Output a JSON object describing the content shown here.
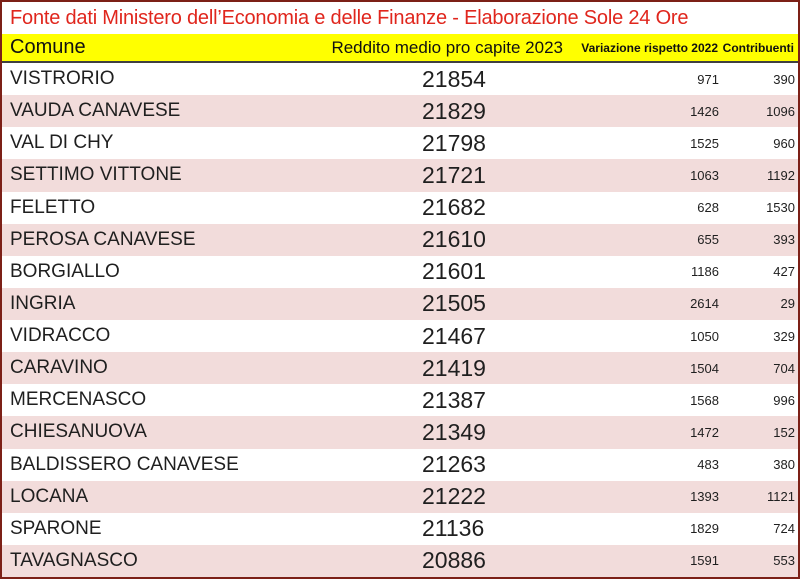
{
  "title": "Fonte dati Ministero dell’Economia e delle Finanze - Elaborazione Sole 24 Ore",
  "chart_data": {
    "type": "table",
    "title": "Fonte dati Ministero dell’Economia e delle Finanze - Elaborazione Sole 24 Ore",
    "columns": [
      "Comune",
      "Reddito medio pro capite 2023",
      "Variazione rispetto 2022",
      "Contribuenti"
    ],
    "rows": [
      [
        "VISTRORIO",
        "21854",
        "971",
        "390"
      ],
      [
        "VAUDA CANAVESE",
        "21829",
        "1426",
        "1096"
      ],
      [
        "VAL DI CHY",
        "21798",
        "1525",
        "960"
      ],
      [
        "SETTIMO VITTONE",
        "21721",
        "1063",
        "1192"
      ],
      [
        "FELETTO",
        "21682",
        "628",
        "1530"
      ],
      [
        "PEROSA CANAVESE",
        "21610",
        "655",
        "393"
      ],
      [
        "BORGIALLO",
        "21601",
        "1186",
        "427"
      ],
      [
        "INGRIA",
        "21505",
        "2614",
        "29"
      ],
      [
        "VIDRACCO",
        "21467",
        "1050",
        "329"
      ],
      [
        "CARAVINO",
        "21419",
        "1504",
        "704"
      ],
      [
        "MERCENASCO",
        "21387",
        "1568",
        "996"
      ],
      [
        "CHIESANUOVA",
        "21349",
        "1472",
        "152"
      ],
      [
        "BALDISSERO CANAVESE",
        "21263",
        "483",
        "380"
      ],
      [
        "LOCANA",
        "21222",
        "1393",
        "1121"
      ],
      [
        "SPARONE",
        "21136",
        "1829",
        "724"
      ],
      [
        "TAVAGNASCO",
        "20886",
        "1591",
        "553"
      ]
    ]
  },
  "colors": {
    "title_red": "#e0261d",
    "header_yellow": "#ffff00",
    "row_pink": "#f2dcdb",
    "border_maroon": "#7c2017",
    "separator_dark": "#404040",
    "text_dark": "#1f1f1f"
  }
}
